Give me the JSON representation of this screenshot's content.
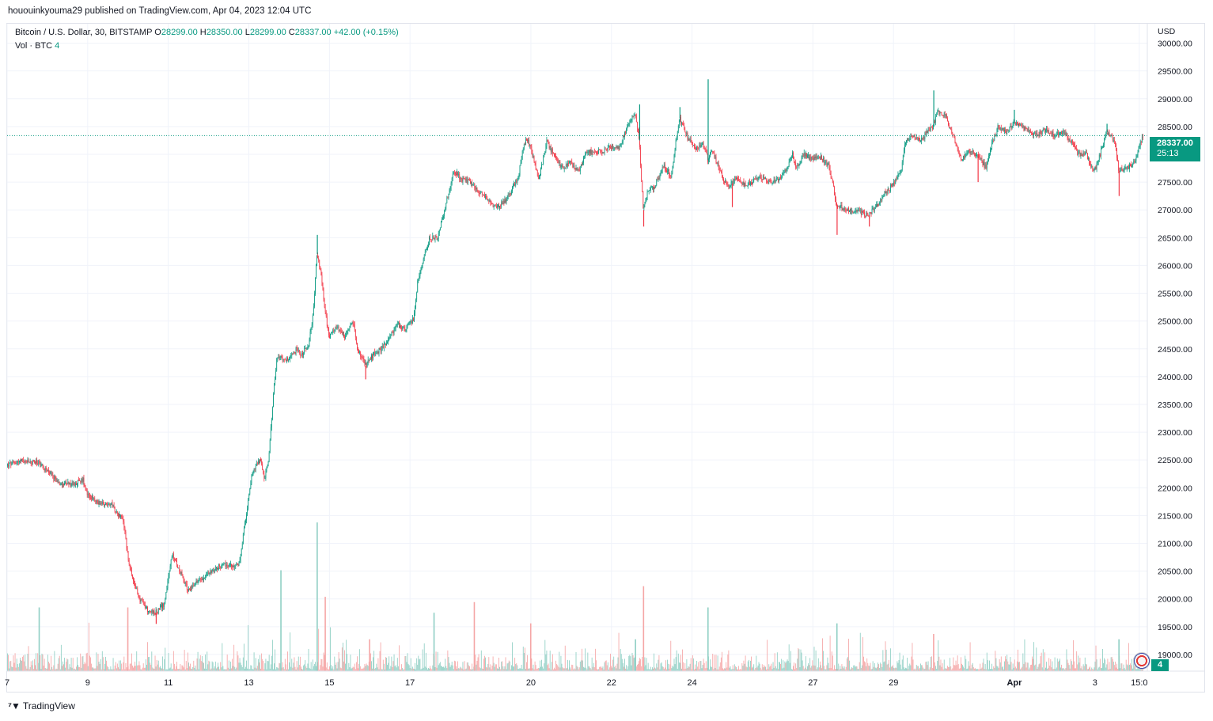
{
  "publisher_line": "hououinkyouma29 published on TradingView.com, Apr 04, 2023 12:04 UTC",
  "legend": {
    "symbol": "Bitcoin / U.S. Dollar, 30, BITSTAMP",
    "open_key": "O",
    "open": "28299.00",
    "high_key": "H",
    "high": "28350.00",
    "low_key": "L",
    "low": "28299.00",
    "close_key": "C",
    "close": "28337.00",
    "change": "+42.00 (+0.15%)",
    "vol_label": "Vol · BTC",
    "vol_value": "4"
  },
  "currency": "USD",
  "last_price": {
    "price": "28337.00",
    "timer": "25:13"
  },
  "volume_badge": "4",
  "footer_brand": "TradingView",
  "colors": {
    "up": "#089981",
    "down": "#f23645",
    "vol_up": "#8fcfc4",
    "vol_down": "#f5a6a6",
    "grid": "#f0f3fa",
    "last_line": "#089981"
  },
  "icons": {
    "footer_logo": "tradingview-logo-icon",
    "flag": "us-flag-icon"
  },
  "chart_data": {
    "type": "candlestick",
    "title": "Bitcoin / U.S. Dollar, 30, BITSTAMP",
    "xlabel": "",
    "ylabel": "USD",
    "ylim": [
      18700,
      30350
    ],
    "y_ticks": [
      "30000.00",
      "29500.00",
      "29000.00",
      "28500.00",
      "28000.00",
      "27500.00",
      "27000.00",
      "26500.00",
      "26000.00",
      "25500.00",
      "25000.00",
      "24500.00",
      "24000.00",
      "23500.00",
      "23000.00",
      "22500.00",
      "22000.00",
      "21500.00",
      "21000.00",
      "20500.00",
      "20000.00",
      "19500.00",
      "19000.00"
    ],
    "x_ticks": [
      {
        "label": "7",
        "day": 0
      },
      {
        "label": "9",
        "day": 2
      },
      {
        "label": "11",
        "day": 4
      },
      {
        "label": "13",
        "day": 6
      },
      {
        "label": "15",
        "day": 8
      },
      {
        "label": "17",
        "day": 10
      },
      {
        "label": "20",
        "day": 13
      },
      {
        "label": "22",
        "day": 15
      },
      {
        "label": "24",
        "day": 17
      },
      {
        "label": "27",
        "day": 20
      },
      {
        "label": "29",
        "day": 22
      },
      {
        "label": "Apr",
        "day": 25,
        "bold": true
      },
      {
        "label": "3",
        "day": 27
      },
      {
        "label": "15:0",
        "day": 28.1
      }
    ],
    "x_range_days": [
      0,
      28.3
    ],
    "last_price": 28337,
    "price_path": [
      [
        0.0,
        22400
      ],
      [
        0.3,
        22480
      ],
      [
        0.8,
        22450
      ],
      [
        1.0,
        22300
      ],
      [
        1.3,
        22100
      ],
      [
        1.6,
        22050
      ],
      [
        1.9,
        22150
      ],
      [
        2.0,
        21900
      ],
      [
        2.2,
        21750
      ],
      [
        2.6,
        21700
      ],
      [
        2.9,
        21400
      ],
      [
        3.0,
        20800
      ],
      [
        3.1,
        20400
      ],
      [
        3.3,
        20000
      ],
      [
        3.5,
        19800
      ],
      [
        3.7,
        19750
      ],
      [
        3.9,
        19900
      ],
      [
        4.0,
        20300
      ],
      [
        4.1,
        20800
      ],
      [
        4.3,
        20500
      ],
      [
        4.5,
        20150
      ],
      [
        4.7,
        20300
      ],
      [
        5.0,
        20450
      ],
      [
        5.3,
        20600
      ],
      [
        5.7,
        20600
      ],
      [
        5.8,
        20700
      ],
      [
        5.9,
        21300
      ],
      [
        6.0,
        21800
      ],
      [
        6.1,
        22300
      ],
      [
        6.3,
        22500
      ],
      [
        6.4,
        22150
      ],
      [
        6.5,
        22500
      ],
      [
        6.6,
        23500
      ],
      [
        6.7,
        24300
      ],
      [
        6.8,
        24350
      ],
      [
        7.0,
        24300
      ],
      [
        7.2,
        24500
      ],
      [
        7.3,
        24350
      ],
      [
        7.5,
        24600
      ],
      [
        7.6,
        25100
      ],
      [
        7.7,
        26200
      ],
      [
        7.8,
        25900
      ],
      [
        7.9,
        25200
      ],
      [
        8.0,
        24700
      ],
      [
        8.2,
        24900
      ],
      [
        8.4,
        24700
      ],
      [
        8.6,
        25000
      ],
      [
        8.7,
        24500
      ],
      [
        8.9,
        24200
      ],
      [
        9.1,
        24400
      ],
      [
        9.3,
        24500
      ],
      [
        9.5,
        24700
      ],
      [
        9.7,
        24950
      ],
      [
        9.9,
        24850
      ],
      [
        10.1,
        25050
      ],
      [
        10.2,
        25700
      ],
      [
        10.3,
        26000
      ],
      [
        10.5,
        26500
      ],
      [
        10.7,
        26500
      ],
      [
        10.8,
        26800
      ],
      [
        11.0,
        27400
      ],
      [
        11.1,
        27700
      ],
      [
        11.3,
        27550
      ],
      [
        11.5,
        27500
      ],
      [
        11.7,
        27350
      ],
      [
        11.9,
        27200
      ],
      [
        12.1,
        27050
      ],
      [
        12.3,
        27100
      ],
      [
        12.5,
        27300
      ],
      [
        12.7,
        27600
      ],
      [
        12.8,
        28050
      ],
      [
        12.9,
        28300
      ],
      [
        13.0,
        28150
      ],
      [
        13.2,
        27550
      ],
      [
        13.3,
        27850
      ],
      [
        13.4,
        28250
      ],
      [
        13.6,
        27950
      ],
      [
        13.8,
        27750
      ],
      [
        14.0,
        27850
      ],
      [
        14.2,
        27700
      ],
      [
        14.4,
        28050
      ],
      [
        14.6,
        28050
      ],
      [
        14.8,
        28050
      ],
      [
        15.0,
        28150
      ],
      [
        15.2,
        28100
      ],
      [
        15.4,
        28500
      ],
      [
        15.6,
        28750
      ],
      [
        15.7,
        28250
      ],
      [
        15.8,
        27000
      ],
      [
        15.9,
        27300
      ],
      [
        16.1,
        27450
      ],
      [
        16.3,
        27800
      ],
      [
        16.5,
        27600
      ],
      [
        16.6,
        28200
      ],
      [
        16.7,
        28650
      ],
      [
        16.9,
        28300
      ],
      [
        17.1,
        28100
      ],
      [
        17.3,
        28200
      ],
      [
        17.4,
        27900
      ],
      [
        17.5,
        28100
      ],
      [
        17.7,
        27700
      ],
      [
        17.9,
        27400
      ],
      [
        18.1,
        27550
      ],
      [
        18.3,
        27450
      ],
      [
        18.5,
        27500
      ],
      [
        18.7,
        27600
      ],
      [
        18.9,
        27500
      ],
      [
        19.1,
        27550
      ],
      [
        19.3,
        27650
      ],
      [
        19.5,
        28000
      ],
      [
        19.6,
        27750
      ],
      [
        19.8,
        28000
      ],
      [
        20.0,
        27900
      ],
      [
        20.2,
        27950
      ],
      [
        20.4,
        27800
      ],
      [
        20.6,
        27100
      ],
      [
        20.8,
        27000
      ],
      [
        21.0,
        27000
      ],
      [
        21.2,
        26950
      ],
      [
        21.4,
        26900
      ],
      [
        21.6,
        27100
      ],
      [
        21.8,
        27300
      ],
      [
        22.0,
        27450
      ],
      [
        22.2,
        27700
      ],
      [
        22.3,
        28250
      ],
      [
        22.5,
        28350
      ],
      [
        22.7,
        28250
      ],
      [
        22.9,
        28450
      ],
      [
        23.0,
        28500
      ],
      [
        23.1,
        28750
      ],
      [
        23.3,
        28700
      ],
      [
        23.5,
        28300
      ],
      [
        23.7,
        27900
      ],
      [
        23.9,
        28050
      ],
      [
        24.1,
        28000
      ],
      [
        24.3,
        27750
      ],
      [
        24.4,
        28050
      ],
      [
        24.6,
        28500
      ],
      [
        24.8,
        28400
      ],
      [
        25.0,
        28550
      ],
      [
        25.2,
        28500
      ],
      [
        25.4,
        28400
      ],
      [
        25.6,
        28350
      ],
      [
        25.8,
        28450
      ],
      [
        26.0,
        28350
      ],
      [
        26.2,
        28400
      ],
      [
        26.4,
        28250
      ],
      [
        26.6,
        28000
      ],
      [
        26.8,
        28000
      ],
      [
        26.9,
        27800
      ],
      [
        27.0,
        27700
      ],
      [
        27.2,
        28150
      ],
      [
        27.3,
        28400
      ],
      [
        27.5,
        28250
      ],
      [
        27.6,
        27700
      ],
      [
        27.8,
        27750
      ],
      [
        28.0,
        27850
      ],
      [
        28.1,
        28100
      ],
      [
        28.2,
        28337
      ]
    ],
    "notable_wicks": [
      {
        "day": 7.7,
        "high": 26550
      },
      {
        "day": 8.9,
        "low": 23950
      },
      {
        "day": 15.7,
        "high": 28900
      },
      {
        "day": 15.8,
        "low": 26700
      },
      {
        "day": 16.7,
        "high": 28850
      },
      {
        "day": 17.4,
        "high": 29350
      },
      {
        "day": 18.0,
        "low": 27050
      },
      {
        "day": 20.6,
        "low": 26550
      },
      {
        "day": 21.4,
        "low": 26700
      },
      {
        "day": 23.0,
        "high": 29150
      },
      {
        "day": 24.1,
        "low": 27500
      },
      {
        "day": 25.0,
        "high": 28800
      },
      {
        "day": 27.6,
        "low": 27250
      },
      {
        "day": 27.3,
        "high": 28550
      },
      {
        "day": 3.7,
        "low": 19550
      }
    ],
    "volume_spikes": [
      {
        "day": 7.7,
        "value": 28
      },
      {
        "day": 15.8,
        "value": 16
      },
      {
        "day": 6.8,
        "value": 19
      },
      {
        "day": 3.0,
        "value": 12
      },
      {
        "day": 17.4,
        "value": 12
      },
      {
        "day": 7.9,
        "value": 14
      },
      {
        "day": 10.6,
        "value": 11
      },
      {
        "day": 11.6,
        "value": 13
      },
      {
        "day": 20.6,
        "value": 9
      },
      {
        "day": 23.0,
        "value": 7
      },
      {
        "day": 27.6,
        "value": 6
      },
      {
        "day": 13.0,
        "value": 9
      },
      {
        "day": 15.6,
        "value": 6
      },
      {
        "day": 9.0,
        "value": 6
      },
      {
        "day": 0.8,
        "value": 12
      }
    ],
    "volume_range": [
      0,
      31
    ]
  }
}
